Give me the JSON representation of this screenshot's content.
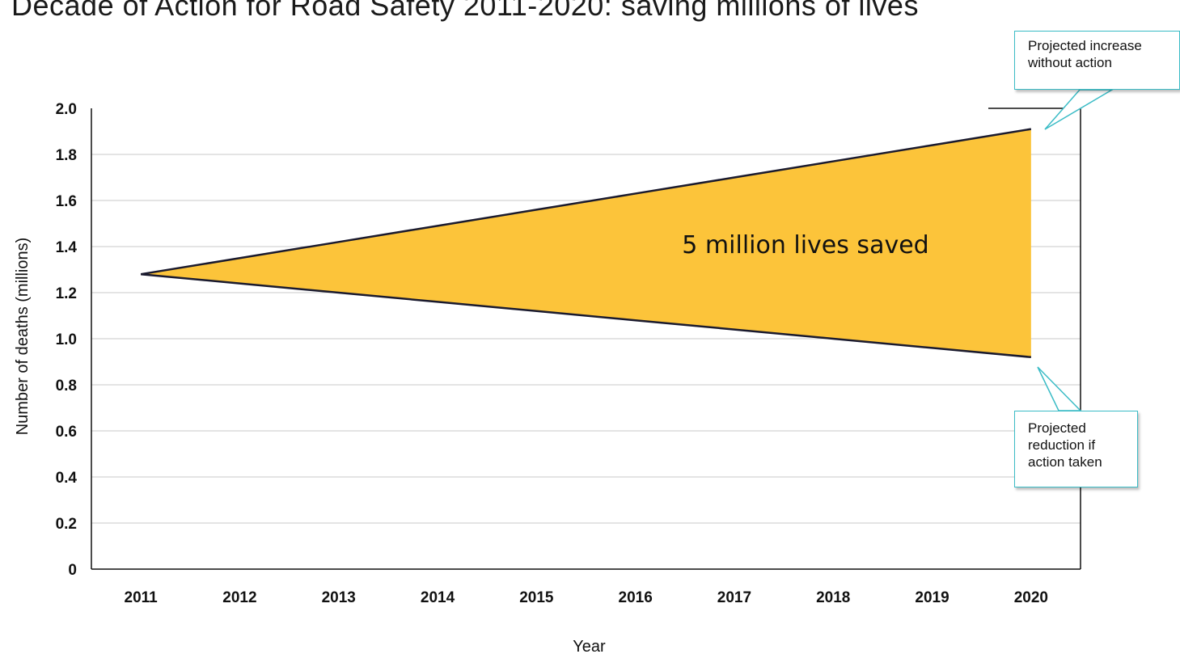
{
  "title": "Decade of Action for Road Safety 2011-2020: saving millions of lives",
  "chart_data": {
    "type": "area",
    "x": [
      2011,
      2012,
      2013,
      2014,
      2015,
      2016,
      2017,
      2018,
      2019,
      2020
    ],
    "series": [
      {
        "name": "Projected increase without action",
        "values": [
          1.28,
          1.35,
          1.42,
          1.49,
          1.56,
          1.63,
          1.7,
          1.77,
          1.84,
          1.91
        ]
      },
      {
        "name": "Projected reduction if action taken",
        "values": [
          1.28,
          1.24,
          1.2,
          1.16,
          1.12,
          1.08,
          1.04,
          1.0,
          0.96,
          0.92
        ]
      }
    ],
    "fill_color": "#fcc43a",
    "line_color": "#1a1a2e",
    "xlabel": "Year",
    "ylabel": "Number of deaths (millions)",
    "yticks": [
      "0",
      "0.2",
      "0.4",
      "0.6",
      "0.8",
      "1.0",
      "1.2",
      "1.4",
      "1.6",
      "1.8",
      "2.0"
    ],
    "ylim": [
      0,
      2.0
    ],
    "grid": true,
    "annotation": "5 million lives saved"
  },
  "callouts": {
    "upper": "Projected increase without action",
    "lower": "Projected reduction if action taken"
  }
}
